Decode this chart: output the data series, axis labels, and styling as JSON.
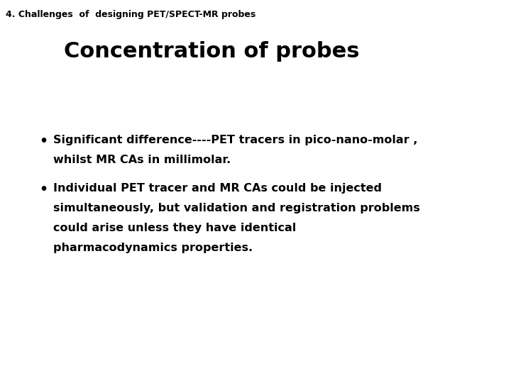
{
  "background_color": "#ffffff",
  "slide_title": "4. Challenges  of  designing PET/SPECT-MR probes",
  "slide_title_fontsize": 9,
  "slide_title_color": "#000000",
  "heading": "Concentration of probes",
  "heading_fontsize": 22,
  "heading_color": "#000000",
  "bullet1_line1": "Significant difference----PET tracers in pico-nano-molar ,",
  "bullet1_line2": "whilst MR CAs in millimolar.",
  "bullet2_line1": "Individual PET tracer and MR CAs could be injected",
  "bullet2_line2": "simultaneously, but validation and registration problems",
  "bullet2_line3": "could arise unless they have identical",
  "bullet2_line4": "pharmacodynamics properties.",
  "bullet_fontsize": 11.5,
  "bullet_color": "#000000",
  "figwidth": 7.2,
  "figheight": 5.4,
  "dpi": 100
}
